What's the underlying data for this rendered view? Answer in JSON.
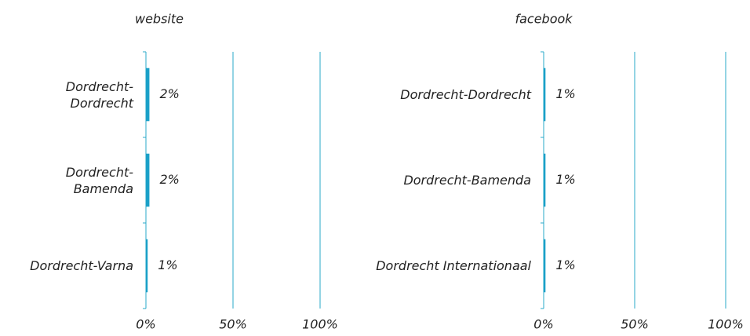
{
  "chart_data": [
    {
      "type": "barh",
      "title": "website",
      "categories": [
        "Dordrecht-Dordrecht",
        "Dordrecht-Bamenda",
        "Dordrecht-Varna"
      ],
      "values": [
        2,
        2,
        1
      ],
      "value_labels": [
        "2%",
        "2%",
        "1%"
      ],
      "color": "#1aa0c8",
      "xlim": [
        0,
        100
      ],
      "xticks": [
        {
          "value": 0,
          "label": "0%"
        },
        {
          "value": 50,
          "label": "50%"
        },
        {
          "value": 100,
          "label": "100%"
        }
      ],
      "grid": true
    },
    {
      "type": "barh",
      "title": "facebook",
      "categories": [
        "Dordrecht-Dordrecht",
        "Dordrecht-Bamenda",
        "Dordrecht Internationaal"
      ],
      "values": [
        1,
        1,
        1
      ],
      "value_labels": [
        "1%",
        "1%",
        "1%"
      ],
      "color": "#1aa0c8",
      "xlim": [
        0,
        100
      ],
      "xticks": [
        {
          "value": 0,
          "label": "0%"
        },
        {
          "value": 50,
          "label": "50%"
        },
        {
          "value": 100,
          "label": "100%"
        }
      ],
      "grid": true
    }
  ]
}
